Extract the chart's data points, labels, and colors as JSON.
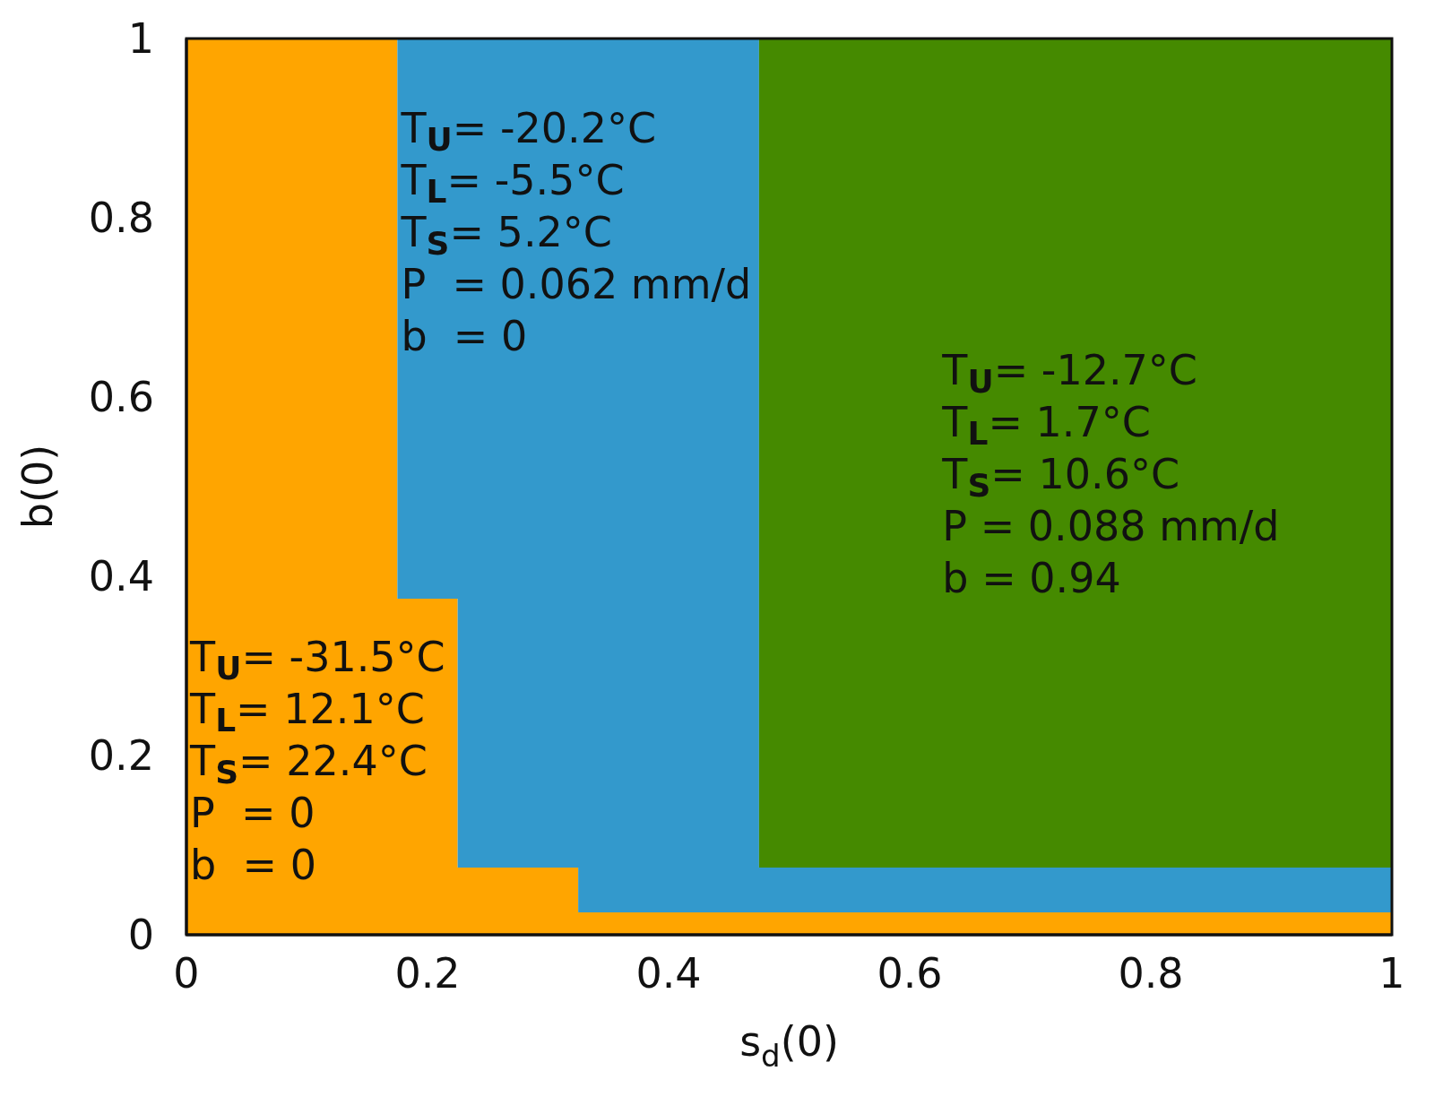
{
  "chart_data": {
    "type": "area",
    "stacked": true,
    "xlabel": "s$_{d}$(0)",
    "ylabel": "b(0)",
    "x": [
      0,
      0.175,
      0.225,
      0.325,
      0.475,
      1
    ],
    "series": [
      {
        "color": "#ffa500",
        "values": [
          1,
          0.375,
          0.075,
          0.025,
          0.025,
          0.025
        ]
      },
      {
        "color": "#3399cc",
        "values": [
          0,
          0.625,
          0.925,
          0.975,
          0.05,
          0.05
        ]
      },
      {
        "color": "#458a00",
        "values": [
          0,
          0,
          0,
          0,
          0.925,
          0.925
        ]
      }
    ],
    "xlim": [
      0,
      1
    ],
    "ylim": [
      0,
      1
    ],
    "xticks": [
      0,
      0.2,
      0.4,
      0.6,
      0.8,
      1
    ],
    "yticks": [
      0,
      0.2,
      0.4,
      0.6,
      0.8,
      1
    ],
    "annotations": [
      "T$_{U}$= -20.2°C",
      "T$_{L}$= -5.5°C",
      "T$_{S}$= 5.2°C",
      "P  = 0.062 mm/d",
      "b  = 0",
      "T$_{U}$= -12.7°C",
      "T$_{L}$= 1.7°C",
      "T$_{S}$= 10.6°C",
      "P = 0.088 mm/d",
      "b = 0.94",
      "T$_{U}$= -31.5°C",
      "T$_{L}$= 12.1°C",
      "T$_{S}$= 22.4°C",
      "P  = 0",
      "b  = 0"
    ]
  }
}
